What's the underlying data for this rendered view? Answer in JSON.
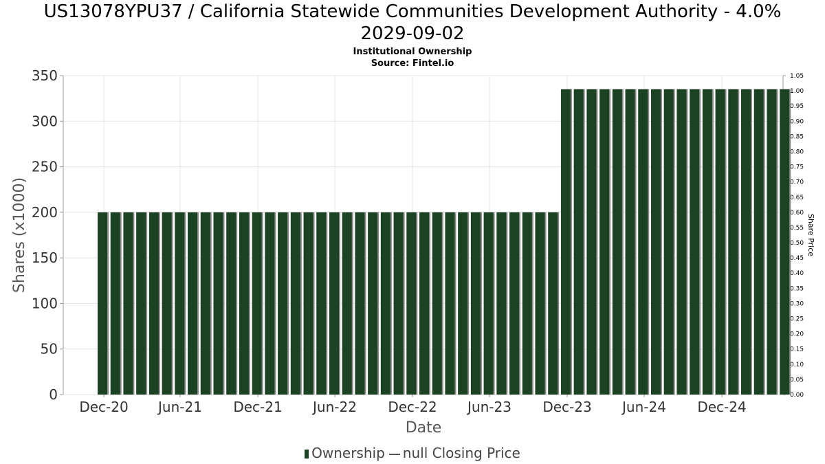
{
  "chart_data": {
    "type": "bar",
    "title_line1": "US13078YPU37 / California Statewide Communities Development Authority - 4.0%",
    "title_line2": "2029-09-02",
    "subtitle": "Institutional Ownership",
    "source": "Source: Fintel.io",
    "xlabel": "Date",
    "ylabel": "Shares (x1000)",
    "y2label": "Share Price",
    "ylim": [
      0,
      350
    ],
    "y2lim": [
      0,
      1.05
    ],
    "y_ticks": [
      "0",
      "50",
      "100",
      "150",
      "200",
      "250",
      "300",
      "350"
    ],
    "y2_ticks": [
      "0.00",
      "0.05",
      "0.10",
      "0.15",
      "0.20",
      "0.25",
      "0.30",
      "0.35",
      "0.40",
      "0.45",
      "0.50",
      "0.55",
      "0.60",
      "0.65",
      "0.70",
      "0.75",
      "0.80",
      "0.85",
      "0.90",
      "0.95",
      "1.00",
      "1.05"
    ],
    "x_ticks": [
      "Dec-20",
      "Jun-21",
      "Dec-21",
      "Jun-22",
      "Dec-22",
      "Jun-23",
      "Dec-23",
      "Jun-24",
      "Dec-24"
    ],
    "series": [
      {
        "name": "Ownership",
        "values": [
          200,
          200,
          200,
          200,
          200,
          200,
          200,
          200,
          200,
          200,
          200,
          200,
          200,
          200,
          200,
          200,
          200,
          200,
          200,
          200,
          200,
          200,
          200,
          200,
          200,
          200,
          200,
          200,
          200,
          200,
          200,
          200,
          200,
          200,
          200,
          200,
          335,
          335,
          335,
          335,
          335,
          335,
          335,
          335,
          335,
          335,
          335,
          335,
          335,
          335,
          335,
          335,
          335,
          335
        ]
      }
    ],
    "legend": {
      "ownership": "Ownership",
      "price": "null Closing Price"
    },
    "colors": {
      "bar": "#1a4223",
      "bar_shadow": "#8a8a8a",
      "grid": "#e4e4e4"
    }
  }
}
